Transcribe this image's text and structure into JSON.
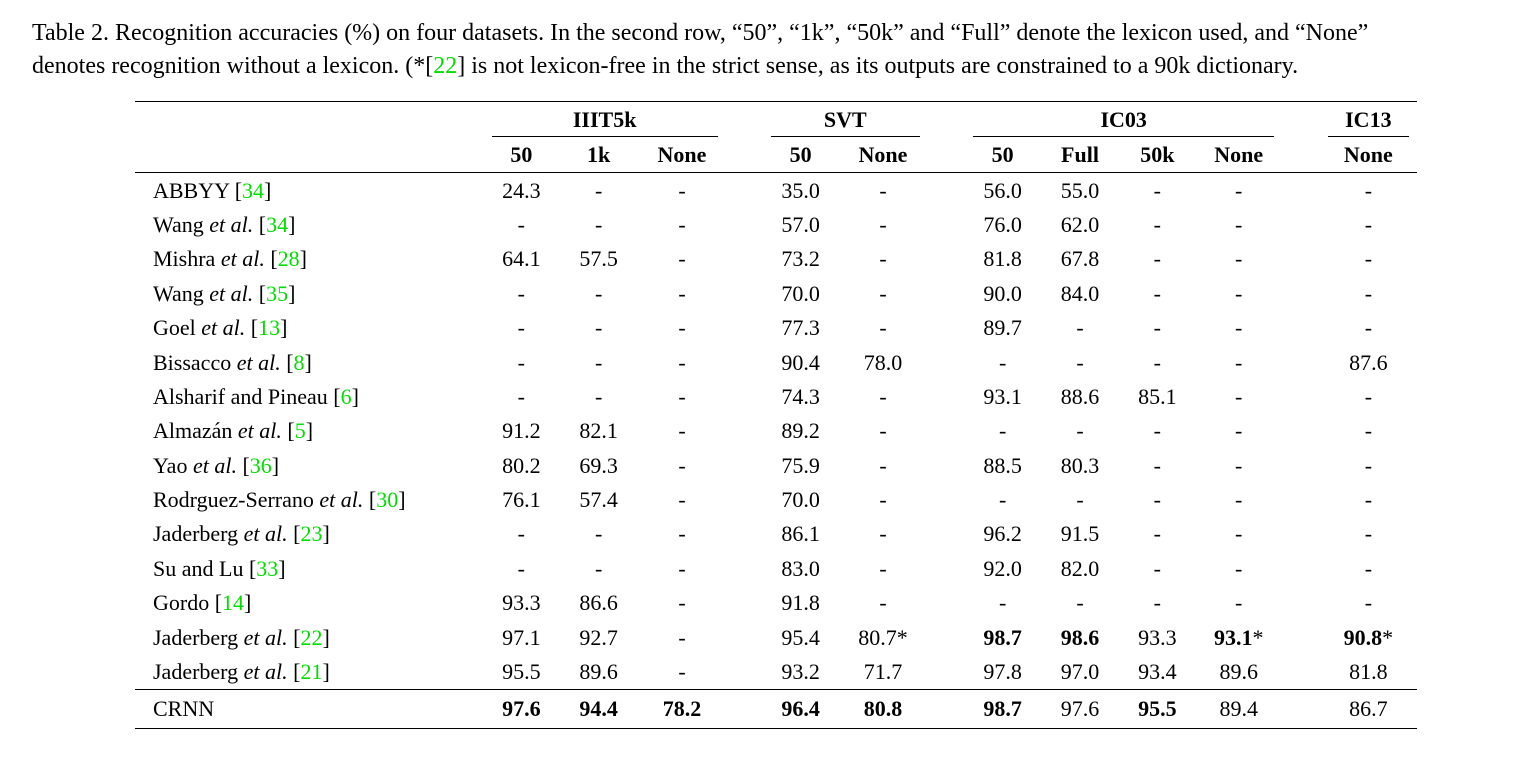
{
  "caption": {
    "line1": "Table 2. Recognition accuracies (%) on four datasets. In the second row, “50”, “1k”, “50k” and “Full” denote the lexicon used, and “None”",
    "line2_a": "denotes recognition without a lexicon. (*[",
    "line2_cite": "22",
    "line2_b": "] is not lexicon-free in the strict sense, as its outputs are constrained to a 90k dictionary."
  },
  "groups": [
    "IIIT5k",
    "SVT",
    "IC03",
    "IC13"
  ],
  "subheads": {
    "iiit5k": [
      "50",
      "1k",
      "None"
    ],
    "svt": [
      "50",
      "None"
    ],
    "ic03": [
      "50",
      "Full",
      "50k",
      "None"
    ],
    "ic13": [
      "None"
    ]
  },
  "rows": [
    {
      "name": "ABBYY",
      "etal": "",
      "cite": "34",
      "cells": [
        "24.3",
        "-",
        "-",
        "35.0",
        "-",
        "56.0",
        "55.0",
        "-",
        "-",
        "-"
      ]
    },
    {
      "name": "Wang",
      "etal": "et al.",
      "cite": "34",
      "cells": [
        "-",
        "-",
        "-",
        "57.0",
        "-",
        "76.0",
        "62.0",
        "-",
        "-",
        "-"
      ]
    },
    {
      "name": "Mishra",
      "etal": "et al.",
      "cite": "28",
      "cells": [
        "64.1",
        "57.5",
        "-",
        "73.2",
        "-",
        "81.8",
        "67.8",
        "-",
        "-",
        "-"
      ]
    },
    {
      "name": "Wang",
      "etal": "et al.",
      "cite": "35",
      "cells": [
        "-",
        "-",
        "-",
        "70.0",
        "-",
        "90.0",
        "84.0",
        "-",
        "-",
        "-"
      ]
    },
    {
      "name": "Goel",
      "etal": "et al.",
      "cite": "13",
      "cells": [
        "-",
        "-",
        "-",
        "77.3",
        "-",
        "89.7",
        "-",
        "-",
        "-",
        "-"
      ]
    },
    {
      "name": "Bissacco",
      "etal": "et al.",
      "cite": "8",
      "cells": [
        "-",
        "-",
        "-",
        "90.4",
        "78.0",
        "-",
        "-",
        "-",
        "-",
        "87.6"
      ]
    },
    {
      "name": "Alsharif and Pineau",
      "etal": "",
      "cite": "6",
      "cells": [
        "-",
        "-",
        "-",
        "74.3",
        "-",
        "93.1",
        "88.6",
        "85.1",
        "-",
        "-"
      ]
    },
    {
      "name": "Almazán",
      "etal": "et al.",
      "cite": "5",
      "cells": [
        "91.2",
        "82.1",
        "-",
        "89.2",
        "-",
        "-",
        "-",
        "-",
        "-",
        "-"
      ]
    },
    {
      "name": "Yao",
      "etal": "et al.",
      "cite": "36",
      "cells": [
        "80.2",
        "69.3",
        "-",
        "75.9",
        "-",
        "88.5",
        "80.3",
        "-",
        "-",
        "-"
      ]
    },
    {
      "name": "Rodrguez-Serrano",
      "etal": "et al.",
      "cite": "30",
      "cells": [
        "76.1",
        "57.4",
        "-",
        "70.0",
        "-",
        "-",
        "-",
        "-",
        "-",
        "-"
      ]
    },
    {
      "name": "Jaderberg",
      "etal": "et al.",
      "cite": "23",
      "cells": [
        "-",
        "-",
        "-",
        "86.1",
        "-",
        "96.2",
        "91.5",
        "-",
        "-",
        "-"
      ]
    },
    {
      "name": "Su and Lu",
      "etal": "",
      "cite": "33",
      "cells": [
        "-",
        "-",
        "-",
        "83.0",
        "-",
        "92.0",
        "82.0",
        "-",
        "-",
        "-"
      ]
    },
    {
      "name": "Gordo",
      "etal": "",
      "cite": "14",
      "cells": [
        "93.3",
        "86.6",
        "-",
        "91.8",
        "-",
        "-",
        "-",
        "-",
        "-",
        "-"
      ]
    },
    {
      "name": "Jaderberg",
      "etal": "et al.",
      "cite": "22",
      "cells": [
        "97.1",
        "92.7",
        "-",
        "95.4",
        "80.7*",
        "98.7",
        "98.6",
        "93.3",
        "93.1",
        "90.8"
      ],
      "suffix": {
        "8": "*",
        "9": "*"
      },
      "bold": [
        5,
        6,
        8,
        9
      ]
    },
    {
      "name": "Jaderberg",
      "etal": "et al.",
      "cite": "21",
      "cells": [
        "95.5",
        "89.6",
        "-",
        "93.2",
        "71.7",
        "97.8",
        "97.0",
        "93.4",
        "89.6",
        "81.8"
      ]
    }
  ],
  "crnn": {
    "name": "CRNN",
    "cells": [
      "97.6",
      "94.4",
      "78.2",
      "96.4",
      "80.8",
      "98.7",
      "97.6",
      "95.5",
      "89.4",
      "86.7"
    ],
    "bold": [
      0,
      1,
      2,
      3,
      4,
      5,
      7
    ]
  }
}
